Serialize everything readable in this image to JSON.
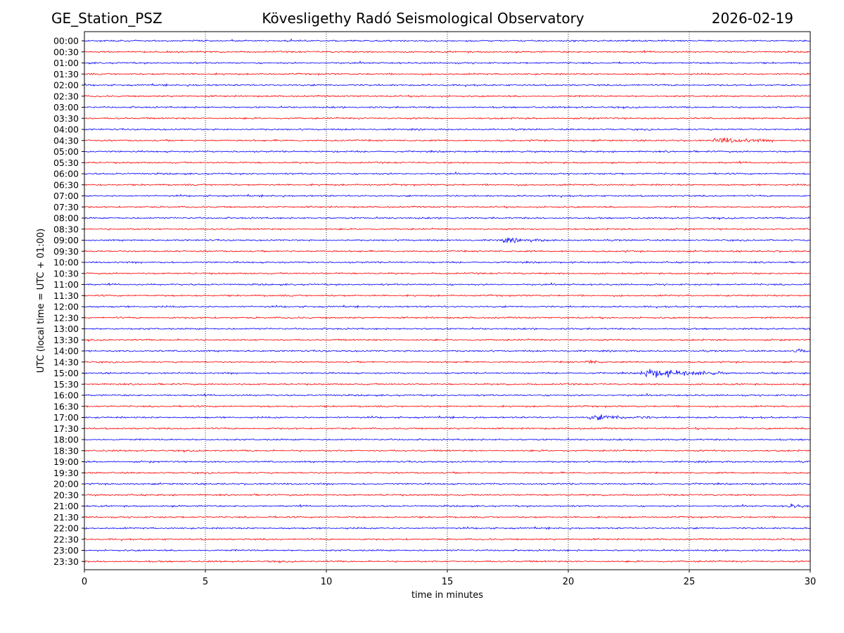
{
  "header": {
    "left": "GE_Station_PSZ",
    "center": "Kövesligethy Radó Seismological Observatory",
    "right": "2026-02-19"
  },
  "chart_data": {
    "type": "line",
    "title": "Kövesligethy Radó Seismological Observatory",
    "xlabel": "time in minutes",
    "ylabel": "UTC (local time = UTC + 01:00)",
    "xlim": [
      0,
      30
    ],
    "x_ticks": [
      0,
      5,
      10,
      15,
      20,
      25,
      30
    ],
    "grid": "vertical dotted lines at 5-minute intervals",
    "rows": [
      "00:00",
      "00:30",
      "01:00",
      "01:30",
      "02:00",
      "02:30",
      "03:00",
      "03:30",
      "04:00",
      "04:30",
      "05:00",
      "05:30",
      "06:00",
      "06:30",
      "07:00",
      "07:30",
      "08:00",
      "08:30",
      "09:00",
      "09:30",
      "10:00",
      "10:30",
      "11:00",
      "11:30",
      "12:00",
      "12:30",
      "13:00",
      "13:30",
      "14:00",
      "14:30",
      "15:00",
      "15:30",
      "16:00",
      "16:30",
      "17:00",
      "17:30",
      "18:00",
      "18:30",
      "19:00",
      "19:30",
      "20:00",
      "20:30",
      "21:00",
      "21:30",
      "22:00",
      "22:30",
      "23:00",
      "23:30"
    ],
    "row_colors": [
      "#0000ff",
      "#ff0000"
    ],
    "noise_amplitude": 1.0,
    "events": [
      {
        "row": "04:30",
        "start_min": 25.9,
        "end_min": 28.5,
        "amplitude": 3.5
      },
      {
        "row": "09:00",
        "start_min": 17.0,
        "end_min": 19.5,
        "amplitude": 2.2
      },
      {
        "row": "14:00",
        "start_min": 29.3,
        "end_min": 30.0,
        "amplitude": 3.0
      },
      {
        "row": "14:30",
        "start_min": 20.7,
        "end_min": 21.5,
        "amplitude": 2.5
      },
      {
        "row": "15:00",
        "start_min": 22.8,
        "end_min": 26.5,
        "amplitude": 5.5
      },
      {
        "row": "17:00",
        "start_min": 20.7,
        "end_min": 23.5,
        "amplitude": 3.0
      },
      {
        "row": "21:00",
        "start_min": 29.0,
        "end_min": 30.0,
        "amplitude": 2.5
      }
    ]
  }
}
